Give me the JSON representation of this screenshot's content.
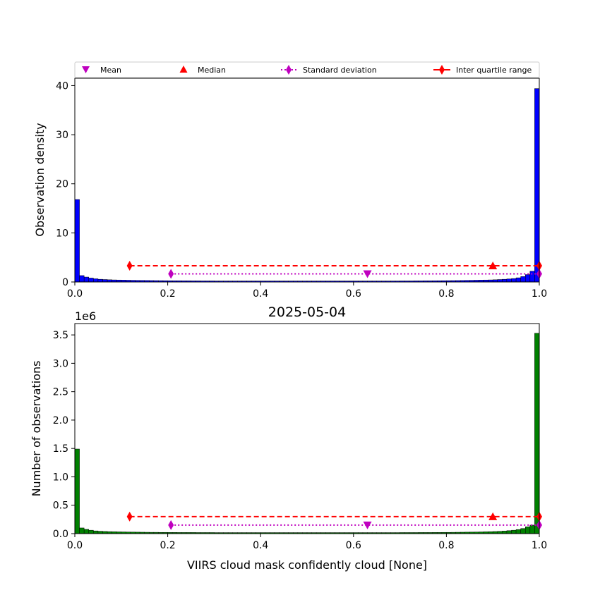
{
  "legend": {
    "items": [
      {
        "label": "Mean",
        "marker": "triangle-down",
        "color": "#bf00bf"
      },
      {
        "label": "Median",
        "marker": "triangle-up",
        "color": "#ff0000"
      },
      {
        "label": "Standard deviation",
        "marker": "thin-diamond",
        "color": "#bf00bf",
        "linestyle": "dotted"
      },
      {
        "label": "Inter quartile range",
        "marker": "thin-diamond",
        "color": "#ff0000",
        "linestyle": "dashed"
      }
    ],
    "placement": "above-top-plot"
  },
  "chart_data": [
    {
      "type": "bar",
      "title": "",
      "xlabel": "",
      "ylabel": "Observation density",
      "xlim": [
        0,
        1
      ],
      "ylim": [
        0,
        41.5
      ],
      "xticks": [
        "0.0",
        "0.2",
        "0.4",
        "0.6",
        "0.8",
        "1.0"
      ],
      "yticks": [
        "0",
        "10",
        "20",
        "30",
        "40"
      ],
      "bar_color": "#0000ff",
      "bin_width": 0.01,
      "values": [
        16.8,
        1.3,
        1.0,
        0.8,
        0.65,
        0.55,
        0.5,
        0.45,
        0.42,
        0.4,
        0.38,
        0.36,
        0.34,
        0.32,
        0.31,
        0.3,
        0.29,
        0.28,
        0.27,
        0.26,
        0.25,
        0.24,
        0.24,
        0.23,
        0.23,
        0.22,
        0.22,
        0.21,
        0.21,
        0.21,
        0.2,
        0.2,
        0.2,
        0.2,
        0.2,
        0.2,
        0.2,
        0.2,
        0.2,
        0.2,
        0.2,
        0.2,
        0.2,
        0.2,
        0.2,
        0.2,
        0.2,
        0.2,
        0.2,
        0.2,
        0.2,
        0.2,
        0.2,
        0.2,
        0.2,
        0.2,
        0.2,
        0.2,
        0.2,
        0.2,
        0.2,
        0.2,
        0.2,
        0.2,
        0.2,
        0.2,
        0.2,
        0.2,
        0.2,
        0.2,
        0.21,
        0.21,
        0.21,
        0.22,
        0.22,
        0.23,
        0.23,
        0.24,
        0.25,
        0.26,
        0.27,
        0.28,
        0.29,
        0.3,
        0.32,
        0.34,
        0.36,
        0.38,
        0.4,
        0.42,
        0.45,
        0.5,
        0.55,
        0.62,
        0.7,
        0.85,
        1.1,
        1.5,
        2.2,
        39.4
      ],
      "stats": {
        "mean": 0.63,
        "median": 0.9,
        "std_y": 1.65,
        "std_range": [
          0.207,
          1.0
        ],
        "iqr_y": 3.3,
        "iqr_range": [
          0.118,
          1.0
        ],
        "median_y": 3.3,
        "mean_y": 1.65
      }
    },
    {
      "type": "bar",
      "title": "2025-05-04",
      "xlabel": "VIIRS cloud mask confidently cloud [None]",
      "ylabel": "Number of observations",
      "offset_label": "1e6",
      "xlim": [
        0,
        1
      ],
      "ylim": [
        0,
        3.7
      ],
      "xticks": [
        "0.0",
        "0.2",
        "0.4",
        "0.6",
        "0.8",
        "1.0"
      ],
      "yticks": [
        "0.0",
        "0.5",
        "1.0",
        "1.5",
        "2.0",
        "2.5",
        "3.0",
        "3.5"
      ],
      "bar_color": "#008000",
      "bin_width": 0.01,
      "values": [
        1.49,
        0.1,
        0.075,
        0.06,
        0.048,
        0.042,
        0.038,
        0.035,
        0.033,
        0.031,
        0.03,
        0.028,
        0.027,
        0.026,
        0.025,
        0.024,
        0.023,
        0.023,
        0.022,
        0.022,
        0.021,
        0.021,
        0.02,
        0.02,
        0.02,
        0.02,
        0.019,
        0.019,
        0.019,
        0.019,
        0.018,
        0.018,
        0.018,
        0.018,
        0.018,
        0.018,
        0.018,
        0.018,
        0.018,
        0.018,
        0.018,
        0.018,
        0.018,
        0.018,
        0.018,
        0.018,
        0.018,
        0.018,
        0.018,
        0.018,
        0.018,
        0.018,
        0.018,
        0.018,
        0.018,
        0.018,
        0.018,
        0.018,
        0.018,
        0.018,
        0.018,
        0.018,
        0.018,
        0.018,
        0.018,
        0.018,
        0.018,
        0.018,
        0.018,
        0.018,
        0.019,
        0.019,
        0.019,
        0.019,
        0.02,
        0.02,
        0.02,
        0.021,
        0.021,
        0.022,
        0.022,
        0.023,
        0.024,
        0.025,
        0.026,
        0.027,
        0.028,
        0.03,
        0.032,
        0.034,
        0.037,
        0.04,
        0.045,
        0.052,
        0.06,
        0.072,
        0.09,
        0.12,
        0.15,
        3.53
      ],
      "stats": {
        "mean": 0.63,
        "median": 0.9,
        "std_y": 0.15,
        "std_range": [
          0.207,
          1.0
        ],
        "iqr_y": 0.3,
        "iqr_range": [
          0.118,
          1.0
        ],
        "median_y": 0.3,
        "mean_y": 0.15
      }
    }
  ]
}
